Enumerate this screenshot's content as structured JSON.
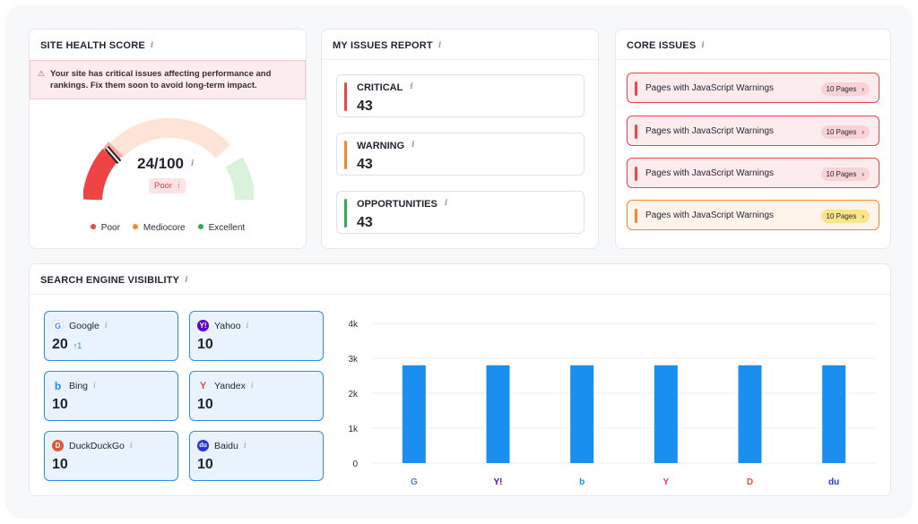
{
  "site_health": {
    "title": "SITE HEALTH SCORE",
    "alert": "Your site has critical issues affecting performance and rankings. Fix them soon to avoid long-term impact.",
    "score": "24/100",
    "score_value": 24,
    "rating": "Poor",
    "legend": [
      "Poor",
      "Mediocore",
      "Excellent"
    ],
    "colors": {
      "poor": "#ef4444",
      "mediocre": "#f5882f",
      "excellent": "#3aa657"
    }
  },
  "issues_report": {
    "title": "MY ISSUES REPORT",
    "items": [
      {
        "label": "CRITICAL",
        "count": "43",
        "color": "#ef4444"
      },
      {
        "label": "WARNING",
        "count": "43",
        "color": "#f5882f"
      },
      {
        "label": "OPPORTUNITIES",
        "count": "43",
        "color": "#3aa657"
      }
    ]
  },
  "core_issues": {
    "title": "CORE ISSUES",
    "items": [
      {
        "label": "Pages with JavaScript Warnings",
        "pages": "10 Pages",
        "severity": "critical"
      },
      {
        "label": "Pages with JavaScript Warnings",
        "pages": "10 Pages",
        "severity": "critical"
      },
      {
        "label": "Pages with JavaScript Warnings",
        "pages": "10 Pages",
        "severity": "critical"
      },
      {
        "label": "Pages with JavaScript Warnings",
        "pages": "10 Pages",
        "severity": "warning"
      }
    ]
  },
  "visibility": {
    "title": "SEARCH ENGINE VISIBILITY",
    "engines": [
      {
        "name": "Google",
        "value": "20",
        "delta": "↑1",
        "icon": "google-icon"
      },
      {
        "name": "Yahoo",
        "value": "10",
        "delta": "",
        "icon": "yahoo-icon"
      },
      {
        "name": "Bing",
        "value": "10",
        "delta": "",
        "icon": "bing-icon"
      },
      {
        "name": "Yandex",
        "value": "10",
        "delta": "",
        "icon": "yandex-icon"
      },
      {
        "name": "DuckDuckGo",
        "value": "10",
        "delta": "",
        "icon": "duckduckgo-icon"
      },
      {
        "name": "Baidu",
        "value": "10",
        "delta": "",
        "icon": "baidu-icon"
      }
    ]
  },
  "chart_data": {
    "type": "bar",
    "categories": [
      "Google",
      "Yahoo",
      "Bing",
      "Yandex",
      "DuckDuckGo",
      "Baidu"
    ],
    "values": [
      2800,
      2800,
      2800,
      2800,
      2800,
      2800
    ],
    "ylim": [
      0,
      4000
    ],
    "yticks": [
      0,
      1000,
      2000,
      3000,
      4000
    ],
    "ytick_labels": [
      "0",
      "1k",
      "2k",
      "3k",
      "4k"
    ],
    "xlabel": "",
    "ylabel": "",
    "title": "",
    "bar_color": "#1a8ff0"
  }
}
